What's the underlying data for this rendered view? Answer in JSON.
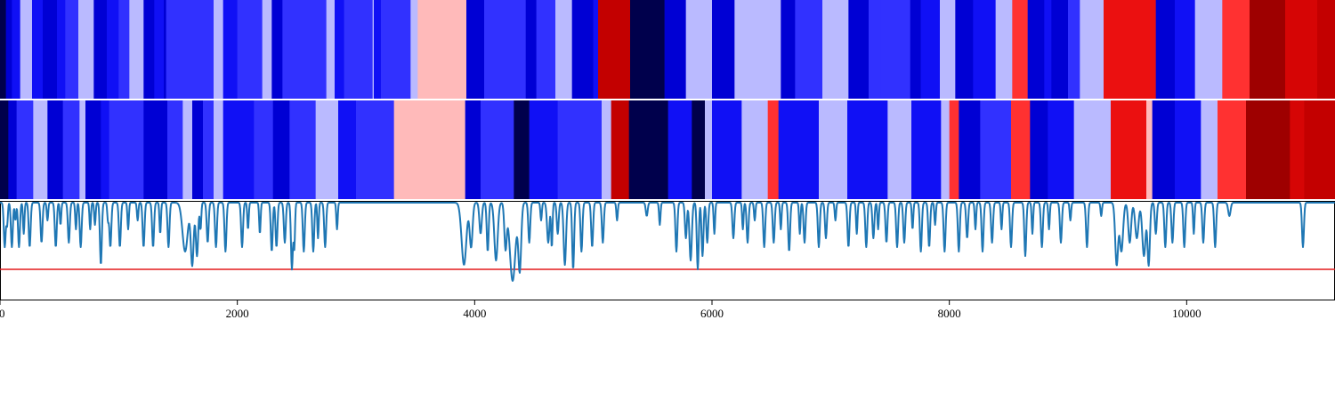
{
  "chart_data": {
    "type": "heatmap",
    "x_range": [
      0,
      11250
    ],
    "colormap": "bwr",
    "tracks": [
      {
        "rows": [
          0,
          1
        ],
        "segments": [
          [
            0,
            50,
            -1.0
          ],
          [
            50,
            100,
            -0.78
          ],
          [
            100,
            170,
            -0.6
          ],
          [
            170,
            270,
            -0.15
          ],
          [
            270,
            360,
            -0.6
          ],
          [
            360,
            480,
            -0.78
          ],
          [
            480,
            550,
            -0.6
          ],
          [
            550,
            660,
            -0.45
          ],
          [
            660,
            790,
            -0.15
          ],
          [
            790,
            900,
            -0.78
          ],
          [
            900,
            1000,
            -0.6
          ],
          [
            1000,
            1090,
            -0.45
          ],
          [
            1090,
            1210,
            -0.15
          ],
          [
            1210,
            1300,
            -0.78
          ],
          [
            1300,
            1380,
            -0.6
          ],
          [
            1380,
            1400,
            -0.78
          ],
          [
            1400,
            1800,
            -0.45
          ],
          [
            1800,
            1880,
            -0.15
          ],
          [
            1880,
            2000,
            -0.6
          ],
          [
            2000,
            2210,
            -0.45
          ],
          [
            2210,
            2290,
            -0.15
          ],
          [
            2290,
            2380,
            -0.78
          ],
          [
            2380,
            2750,
            -0.45
          ],
          [
            2750,
            2820,
            -0.15
          ],
          [
            2820,
            2900,
            -0.6
          ],
          [
            2900,
            3140,
            -0.45
          ],
          [
            3140,
            3150,
            -0.15
          ],
          [
            3150,
            3210,
            -0.6
          ],
          [
            3210,
            3460,
            -0.45
          ],
          [
            3460,
            3520,
            -0.15
          ],
          [
            3520,
            3930,
            0.15
          ],
          [
            3930,
            4080,
            -0.78
          ],
          [
            4080,
            4430,
            -0.45
          ],
          [
            4430,
            4520,
            -0.78
          ],
          [
            4520,
            4680,
            -0.45
          ],
          [
            4680,
            4820,
            -0.15
          ],
          [
            4820,
            5000,
            -0.78
          ],
          [
            5000,
            5040,
            -0.6
          ],
          [
            5040,
            5310,
            0.78
          ],
          [
            5310,
            5600,
            -1.0
          ],
          [
            5600,
            5780,
            -0.78
          ],
          [
            5780,
            6000,
            -0.15
          ],
          [
            6000,
            6190,
            -0.78
          ],
          [
            6190,
            6580,
            -0.15
          ],
          [
            6580,
            6700,
            -0.78
          ],
          [
            6700,
            6930,
            -0.45
          ],
          [
            6930,
            7150,
            -0.15
          ],
          [
            7150,
            7320,
            -0.78
          ],
          [
            7320,
            7420,
            -0.45
          ],
          [
            7420,
            7670,
            -0.45
          ],
          [
            7670,
            7760,
            -0.78
          ],
          [
            7760,
            7920,
            -0.6
          ],
          [
            7920,
            8050,
            -0.15
          ],
          [
            8050,
            8200,
            -0.78
          ],
          [
            8200,
            8390,
            -0.6
          ],
          [
            8390,
            8530,
            -0.15
          ],
          [
            8530,
            8660,
            0.45
          ],
          [
            8660,
            8800,
            -0.78
          ],
          [
            8800,
            8860,
            -0.6
          ],
          [
            8860,
            9000,
            -0.78
          ],
          [
            9000,
            9100,
            -0.45
          ],
          [
            9100,
            9300,
            -0.15
          ],
          [
            9300,
            9740,
            0.6
          ],
          [
            9740,
            9900,
            -0.78
          ],
          [
            9900,
            10070,
            -0.6
          ],
          [
            10070,
            10300,
            -0.15
          ],
          [
            10300,
            10530,
            0.45
          ],
          [
            10530,
            10830,
            0.9
          ],
          [
            10830,
            11100,
            0.7
          ],
          [
            11100,
            11250,
            0.78
          ]
        ]
      },
      {
        "rows": [
          2,
          3
        ],
        "segments": [
          [
            0,
            70,
            -1.0
          ],
          [
            70,
            140,
            -0.78
          ],
          [
            140,
            280,
            -0.45
          ],
          [
            280,
            400,
            -0.15
          ],
          [
            400,
            530,
            -0.78
          ],
          [
            530,
            670,
            -0.45
          ],
          [
            670,
            720,
            -0.15
          ],
          [
            720,
            850,
            -0.78
          ],
          [
            850,
            920,
            -0.6
          ],
          [
            920,
            1210,
            -0.45
          ],
          [
            1210,
            1410,
            -0.78
          ],
          [
            1410,
            1540,
            -0.45
          ],
          [
            1540,
            1620,
            -0.15
          ],
          [
            1620,
            1710,
            -0.78
          ],
          [
            1710,
            1800,
            -0.45
          ],
          [
            1800,
            1880,
            -0.15
          ],
          [
            1880,
            2140,
            -0.6
          ],
          [
            2140,
            2300,
            -0.45
          ],
          [
            2300,
            2440,
            -0.78
          ],
          [
            2440,
            2660,
            -0.45
          ],
          [
            2660,
            2850,
            -0.15
          ],
          [
            2850,
            3000,
            -0.6
          ],
          [
            3000,
            3320,
            -0.45
          ],
          [
            3320,
            3920,
            0.15
          ],
          [
            3920,
            4050,
            -0.78
          ],
          [
            4050,
            4330,
            -0.45
          ],
          [
            4330,
            4460,
            -1.0
          ],
          [
            4460,
            4700,
            -0.6
          ],
          [
            4700,
            5070,
            -0.45
          ],
          [
            5070,
            5150,
            -0.15
          ],
          [
            5150,
            5300,
            0.78
          ],
          [
            5300,
            5630,
            -1.0
          ],
          [
            5630,
            5830,
            -0.6
          ],
          [
            5830,
            5940,
            -1.0
          ],
          [
            5940,
            6000,
            -0.15
          ],
          [
            6000,
            6250,
            -0.6
          ],
          [
            6250,
            6470,
            -0.15
          ],
          [
            6470,
            6560,
            0.45
          ],
          [
            6560,
            6900,
            -0.6
          ],
          [
            6900,
            7140,
            -0.15
          ],
          [
            7140,
            7480,
            -0.6
          ],
          [
            7480,
            7680,
            -0.15
          ],
          [
            7680,
            7930,
            -0.6
          ],
          [
            7930,
            8000,
            -0.15
          ],
          [
            8000,
            8080,
            0.45
          ],
          [
            8080,
            8260,
            -0.78
          ],
          [
            8260,
            8520,
            -0.45
          ],
          [
            8520,
            8680,
            0.45
          ],
          [
            8680,
            8830,
            -0.78
          ],
          [
            8830,
            9050,
            -0.6
          ],
          [
            9050,
            9360,
            -0.15
          ],
          [
            9360,
            9540,
            0.6
          ],
          [
            9540,
            9660,
            0.6
          ],
          [
            9660,
            9710,
            0.15
          ],
          [
            9710,
            9900,
            -0.78
          ],
          [
            9900,
            10120,
            -0.6
          ],
          [
            10120,
            10260,
            -0.15
          ],
          [
            10260,
            10500,
            0.45
          ],
          [
            10500,
            10870,
            0.9
          ],
          [
            10870,
            10990,
            0.7
          ],
          [
            10990,
            11250,
            0.78
          ]
        ]
      }
    ],
    "line": {
      "baseline": 0,
      "threshold": -7.5,
      "ylim": [
        -11,
        0.2
      ],
      "threshold_color": "#e31a1c",
      "line_color": "#1f77b4",
      "dips": [
        [
          40,
          -5.0,
          8
        ],
        [
          60,
          -2.5,
          6
        ],
        [
          100,
          -5.0,
          8
        ],
        [
          130,
          -2.0,
          6
        ],
        [
          160,
          -5.0,
          8
        ],
        [
          200,
          -3.5,
          6
        ],
        [
          250,
          -5.0,
          8
        ],
        [
          350,
          -4.5,
          8
        ],
        [
          400,
          -2.0,
          6
        ],
        [
          470,
          -5.0,
          8
        ],
        [
          510,
          -2.5,
          6
        ],
        [
          580,
          -4.5,
          8
        ],
        [
          640,
          -3.0,
          6
        ],
        [
          680,
          -5.0,
          8
        ],
        [
          760,
          -3.0,
          6
        ],
        [
          800,
          -2.5,
          6
        ],
        [
          850,
          -7.0,
          8
        ],
        [
          910,
          -2.0,
          6
        ],
        [
          930,
          -5.0,
          8
        ],
        [
          1010,
          -5.0,
          8
        ],
        [
          1080,
          -3.0,
          6
        ],
        [
          1160,
          -2.0,
          6
        ],
        [
          1210,
          -5.0,
          8
        ],
        [
          1290,
          -5.0,
          8
        ],
        [
          1350,
          -3.5,
          6
        ],
        [
          1420,
          -5.0,
          8
        ],
        [
          1560,
          -5.5,
          22
        ],
        [
          1620,
          -7.0,
          12
        ],
        [
          1660,
          -6.0,
          10
        ],
        [
          1690,
          -3.0,
          6
        ],
        [
          1750,
          -4.5,
          8
        ],
        [
          1820,
          -5.0,
          8
        ],
        [
          1900,
          -5.5,
          8
        ],
        [
          2040,
          -5.0,
          8
        ],
        [
          2090,
          -3.0,
          6
        ],
        [
          2190,
          -3.5,
          6
        ],
        [
          2290,
          -5.5,
          8
        ],
        [
          2330,
          -5.0,
          8
        ],
        [
          2400,
          -4.5,
          8
        ],
        [
          2460,
          -7.5,
          8
        ],
        [
          2480,
          -5.0,
          6
        ],
        [
          2560,
          -5.5,
          8
        ],
        [
          2640,
          -5.5,
          8
        ],
        [
          2680,
          -4.0,
          6
        ],
        [
          2740,
          -5.0,
          8
        ],
        [
          2840,
          -3.0,
          6
        ],
        [
          3910,
          -7.0,
          20
        ],
        [
          3970,
          -5.0,
          12
        ],
        [
          4050,
          -3.5,
          10
        ],
        [
          4110,
          -5.5,
          8
        ],
        [
          4180,
          -6.5,
          14
        ],
        [
          4260,
          -5.0,
          10
        ],
        [
          4320,
          -8.8,
          24
        ],
        [
          4380,
          -7.5,
          12
        ],
        [
          4460,
          -4.5,
          8
        ],
        [
          4560,
          -2.0,
          6
        ],
        [
          4620,
          -4.5,
          10
        ],
        [
          4650,
          -5.0,
          6
        ],
        [
          4700,
          -3.5,
          8
        ],
        [
          4760,
          -7.0,
          10
        ],
        [
          4830,
          -7.5,
          8
        ],
        [
          4900,
          -5.5,
          8
        ],
        [
          4990,
          -5.0,
          8
        ],
        [
          5080,
          -4.5,
          8
        ],
        [
          5200,
          -2.0,
          6
        ],
        [
          5450,
          -1.5,
          8
        ],
        [
          5560,
          -2.5,
          6
        ],
        [
          5700,
          -5.5,
          8
        ],
        [
          5780,
          -4.0,
          8
        ],
        [
          5820,
          -6.5,
          10
        ],
        [
          5880,
          -7.5,
          8
        ],
        [
          5920,
          -6.0,
          8
        ],
        [
          5960,
          -4.5,
          8
        ],
        [
          6020,
          -3.5,
          6
        ],
        [
          6180,
          -4.0,
          8
        ],
        [
          6260,
          -3.0,
          6
        ],
        [
          6300,
          -4.5,
          8
        ],
        [
          6360,
          -2.0,
          6
        ],
        [
          6440,
          -5.0,
          8
        ],
        [
          6520,
          -4.5,
          8
        ],
        [
          6580,
          -3.0,
          6
        ],
        [
          6650,
          -5.5,
          8
        ],
        [
          6740,
          -3.5,
          6
        ],
        [
          6780,
          -4.5,
          8
        ],
        [
          6900,
          -5.0,
          8
        ],
        [
          6960,
          -4.0,
          8
        ],
        [
          7040,
          -2.0,
          6
        ],
        [
          7150,
          -5.0,
          8
        ],
        [
          7220,
          -3.5,
          6
        ],
        [
          7300,
          -5.0,
          8
        ],
        [
          7360,
          -4.0,
          8
        ],
        [
          7400,
          -3.0,
          6
        ],
        [
          7470,
          -4.5,
          8
        ],
        [
          7560,
          -5.0,
          8
        ],
        [
          7620,
          -4.5,
          8
        ],
        [
          7690,
          -3.0,
          6
        ],
        [
          7760,
          -5.5,
          8
        ],
        [
          7830,
          -5.0,
          8
        ],
        [
          7880,
          -2.5,
          6
        ],
        [
          7960,
          -5.5,
          8
        ],
        [
          8080,
          -5.5,
          8
        ],
        [
          8150,
          -4.0,
          8
        ],
        [
          8220,
          -3.0,
          6
        ],
        [
          8280,
          -5.5,
          8
        ],
        [
          8360,
          -4.5,
          8
        ],
        [
          8440,
          -3.0,
          6
        ],
        [
          8520,
          -5.0,
          8
        ],
        [
          8640,
          -6.0,
          8
        ],
        [
          8700,
          -3.5,
          6
        ],
        [
          8780,
          -5.0,
          8
        ],
        [
          8840,
          -3.0,
          6
        ],
        [
          8940,
          -4.5,
          8
        ],
        [
          9020,
          -2.0,
          6
        ],
        [
          9160,
          -5.0,
          8
        ],
        [
          9280,
          -1.5,
          6
        ],
        [
          9410,
          -7.0,
          12
        ],
        [
          9450,
          -5.5,
          14
        ],
        [
          9520,
          -4.5,
          12
        ],
        [
          9580,
          -4.0,
          14
        ],
        [
          9640,
          -6.0,
          14
        ],
        [
          9680,
          -7.0,
          10
        ],
        [
          9740,
          -3.5,
          8
        ],
        [
          9820,
          -5.0,
          8
        ],
        [
          9880,
          -4.5,
          8
        ],
        [
          9980,
          -5.0,
          8
        ],
        [
          10060,
          -3.5,
          6
        ],
        [
          10140,
          -4.5,
          8
        ],
        [
          10240,
          -5.0,
          8
        ],
        [
          10360,
          -1.5,
          10
        ],
        [
          10980,
          -5.0,
          8
        ]
      ]
    },
    "x_ticks": [
      0,
      2000,
      4000,
      6000,
      8000,
      10000
    ],
    "grid": false,
    "legend": "none",
    "title": "",
    "xlabel": "",
    "ylabel": ""
  }
}
